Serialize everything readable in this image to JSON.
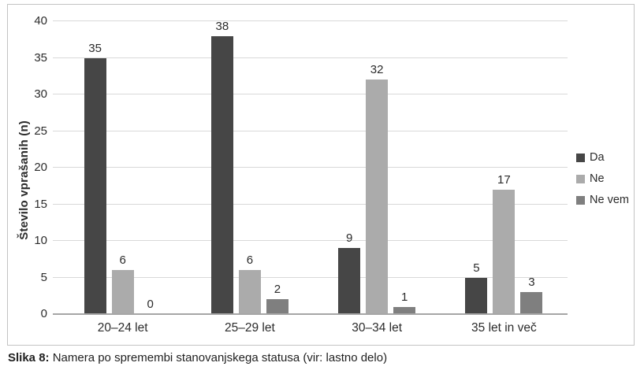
{
  "figure": {
    "caption_label": "Slika 8:",
    "caption_text": " Namera po spremembi stanovanjskega statusa (vir: lastno delo)"
  },
  "chart_data": {
    "type": "bar",
    "title": "",
    "xlabel": "",
    "ylabel": "Število vprašanih (n)",
    "ylim": [
      0,
      40
    ],
    "ytick_step": 5,
    "grid": true,
    "value_labels": true,
    "legend_position": "right",
    "categories": [
      "20–24 let",
      "25–29 let",
      "30–34 let",
      "35 let in več"
    ],
    "series": [
      {
        "name": "Da",
        "color": "#464646",
        "values": [
          35,
          38,
          9,
          5
        ]
      },
      {
        "name": "Ne",
        "color": "#ababab",
        "values": [
          6,
          6,
          32,
          17
        ]
      },
      {
        "name": "Ne vem",
        "color": "#7f7f7f",
        "values": [
          0,
          2,
          1,
          3
        ]
      }
    ],
    "colors": {
      "gridline": "#d9d9d9",
      "axis_line": "#a6a6a6",
      "frame_border": "#c3c3c3",
      "text": "#2b2b2b"
    }
  }
}
